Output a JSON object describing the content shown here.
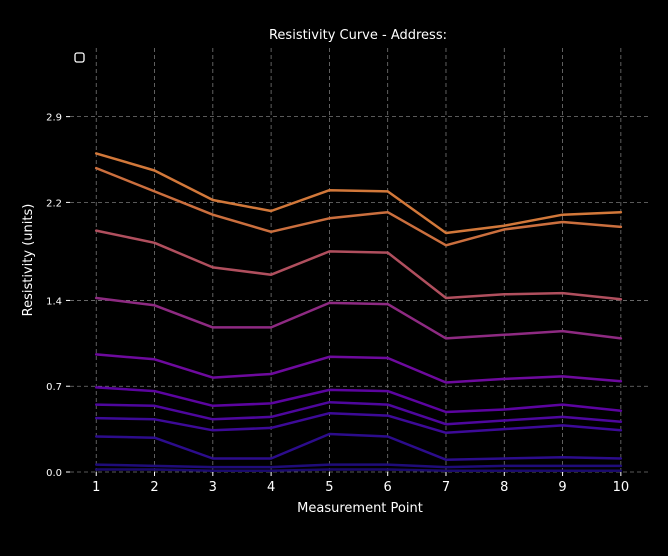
{
  "chart_data": {
    "type": "line",
    "title": "Resistivity Curve - Address:",
    "xlabel": "Measurement Point",
    "ylabel": "Resistivity (units)",
    "x": [
      1,
      2,
      3,
      4,
      5,
      6,
      7,
      8,
      9,
      10
    ],
    "x_ticks": [
      "1",
      "2",
      "3",
      "4",
      "5",
      "6",
      "7",
      "8",
      "9",
      "10"
    ],
    "y_ticks": [
      "0.0",
      "0.7",
      "1.4",
      "2.2",
      "2.9"
    ],
    "y_tick_values": [
      0.0,
      0.7,
      1.4,
      2.2,
      2.9
    ],
    "xlim": [
      0.55,
      10.5
    ],
    "ylim": [
      0.0,
      3.46
    ],
    "grid": true,
    "legend": {
      "visible": true,
      "placement": "top-left",
      "entries": [
        ""
      ]
    },
    "background": "#000000",
    "text_color": "#ffffff",
    "grid_color": "#777777",
    "series": [
      {
        "color": "#1a0a6b",
        "values": [
          0.02,
          0.02,
          0.01,
          0.01,
          0.02,
          0.02,
          0.01,
          0.01,
          0.01,
          0.01
        ]
      },
      {
        "color": "#1f0c7a",
        "values": [
          0.06,
          0.05,
          0.04,
          0.04,
          0.06,
          0.06,
          0.04,
          0.05,
          0.05,
          0.05
        ]
      },
      {
        "color": "#2c0c8c",
        "values": [
          0.29,
          0.28,
          0.11,
          0.11,
          0.31,
          0.29,
          0.1,
          0.11,
          0.12,
          0.11
        ]
      },
      {
        "color": "#3d0a98",
        "values": [
          0.44,
          0.43,
          0.34,
          0.36,
          0.48,
          0.46,
          0.32,
          0.35,
          0.38,
          0.34
        ]
      },
      {
        "color": "#4e079e",
        "values": [
          0.55,
          0.54,
          0.43,
          0.45,
          0.57,
          0.55,
          0.39,
          0.42,
          0.45,
          0.41
        ]
      },
      {
        "color": "#5c04a0",
        "values": [
          0.69,
          0.66,
          0.54,
          0.56,
          0.67,
          0.66,
          0.49,
          0.51,
          0.55,
          0.5
        ]
      },
      {
        "color": "#6e0a9e",
        "values": [
          0.96,
          0.92,
          0.77,
          0.8,
          0.94,
          0.93,
          0.73,
          0.76,
          0.78,
          0.74
        ]
      },
      {
        "color": "#8e2a82",
        "values": [
          1.42,
          1.36,
          1.18,
          1.18,
          1.38,
          1.37,
          1.09,
          1.12,
          1.15,
          1.09
        ]
      },
      {
        "color": "#b04f5e",
        "values": [
          1.97,
          1.87,
          1.67,
          1.61,
          1.8,
          1.79,
          1.42,
          1.45,
          1.46,
          1.41
        ]
      },
      {
        "color": "#cb6f3e",
        "values": [
          2.48,
          2.29,
          2.1,
          1.96,
          2.07,
          2.12,
          1.85,
          1.98,
          2.04,
          2.0
        ]
      },
      {
        "color": "#d2783a",
        "values": [
          2.6,
          2.46,
          2.22,
          2.13,
          2.3,
          2.29,
          1.95,
          2.01,
          2.1,
          2.12
        ]
      }
    ]
  }
}
